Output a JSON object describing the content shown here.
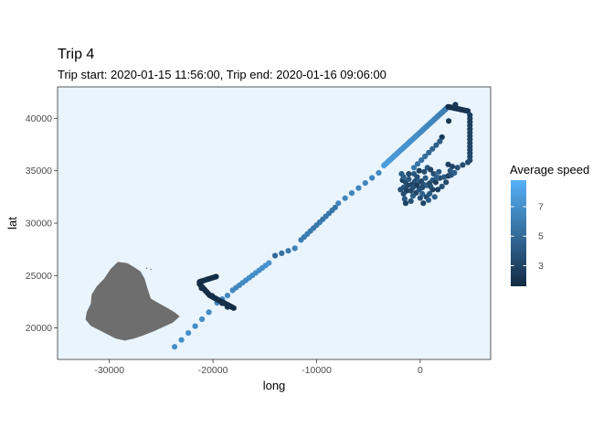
{
  "chart_data": {
    "type": "scatter",
    "title": "Trip 4",
    "subtitle": "Trip start: 2020-01-15 11:56:00, Trip end: 2020-01-16 09:06:00",
    "xlabel": "long",
    "ylabel": "lat",
    "xlim": [
      -35000,
      6800
    ],
    "ylim": [
      17000,
      43000
    ],
    "x_ticks": [
      -30000,
      -20000,
      -10000,
      0
    ],
    "x_tick_labels": [
      "-30000",
      "-20000",
      "-10000",
      "0"
    ],
    "y_ticks": [
      20000,
      25000,
      30000,
      35000,
      40000
    ],
    "y_tick_labels": [
      "20000",
      "25000",
      "30000",
      "35000",
      "40000"
    ],
    "grid": false,
    "panel_background": "#eaf4fd",
    "panel_border": "#333333",
    "land_color": "#6e6e6e",
    "color_scale": {
      "title": "Average speed",
      "low_color": "#132b43",
      "high_color": "#56b1f7",
      "range": [
        1.6,
        8.8
      ],
      "breaks": [
        3,
        5,
        7
      ],
      "break_labels": [
        "3",
        "5",
        "7"
      ]
    },
    "legend_position": "right",
    "island_outline": [
      [
        -29200,
        26300
      ],
      [
        -28300,
        26200
      ],
      [
        -27600,
        25800
      ],
      [
        -27000,
        25400
      ],
      [
        -26600,
        24700
      ],
      [
        -26300,
        23700
      ],
      [
        -26000,
        22800
      ],
      [
        -25300,
        22400
      ],
      [
        -24400,
        21900
      ],
      [
        -23700,
        21500
      ],
      [
        -23200,
        21100
      ],
      [
        -23900,
        20500
      ],
      [
        -24800,
        20100
      ],
      [
        -25700,
        19700
      ],
      [
        -26700,
        19300
      ],
      [
        -27600,
        19000
      ],
      [
        -28500,
        18800
      ],
      [
        -29400,
        19000
      ],
      [
        -30200,
        19400
      ],
      [
        -31000,
        19800
      ],
      [
        -31800,
        20200
      ],
      [
        -32300,
        20800
      ],
      [
        -32200,
        21500
      ],
      [
        -31800,
        22300
      ],
      [
        -31700,
        23200
      ],
      [
        -31200,
        24000
      ],
      [
        -30500,
        24700
      ],
      [
        -29900,
        25600
      ]
    ],
    "speckles": [
      [
        -26400,
        25700
      ],
      [
        -26000,
        25600
      ]
    ],
    "segments": [
      {
        "from": [
          -23700,
          18200
        ],
        "to": [
          -20400,
          21500
        ],
        "n": 6,
        "speed": [
          7.0,
          6.8
        ]
      },
      {
        "from": [
          -19600,
          22400
        ],
        "to": [
          -18600,
          23100
        ],
        "n": 3,
        "speed": [
          6.4,
          6.6
        ]
      },
      {
        "from": [
          -18100,
          23600
        ],
        "to": [
          -14600,
          26200
        ],
        "n": 12,
        "speed": [
          6.5,
          7.2
        ]
      },
      {
        "from": [
          -14000,
          26900
        ],
        "to": [
          -12100,
          27600
        ],
        "n": 4,
        "speed": [
          5.0,
          6.2
        ]
      },
      {
        "from": [
          -11500,
          28400
        ],
        "to": [
          -8200,
          31500
        ],
        "n": 12,
        "speed": [
          6.0,
          5.6
        ]
      },
      {
        "from": [
          -7900,
          31900
        ],
        "to": [
          -4000,
          34800
        ],
        "n": 7,
        "speed": [
          6.4,
          6.6
        ]
      },
      {
        "from": [
          -3500,
          35500
        ],
        "to": [
          2700,
          41100
        ],
        "n": 70,
        "speed": [
          7.8,
          6.0
        ]
      },
      {
        "from": [
          2700,
          41100
        ],
        "to": [
          4600,
          40700
        ],
        "n": 14,
        "speed": [
          1.9,
          2.2
        ]
      },
      {
        "from": [
          4800,
          40300
        ],
        "to": [
          4800,
          36000
        ],
        "n": 14,
        "speed": [
          2.6,
          3.2
        ]
      },
      {
        "from": [
          4600,
          35800
        ],
        "to": [
          3600,
          35300
        ],
        "n": 3,
        "speed": [
          3.4,
          3.6
        ]
      },
      {
        "from": [
          3400,
          41300
        ],
        "to": [
          2100,
          38200
        ],
        "n": 3,
        "speed": [
          2.2,
          2.4
        ]
      },
      {
        "from": [
          1900,
          37800
        ],
        "to": [
          -600,
          35300
        ],
        "n": 8,
        "speed": [
          4.2,
          5.8
        ]
      },
      {
        "from": [
          -18000,
          21900
        ],
        "to": [
          -20300,
          23100
        ],
        "n": 20,
        "speed": [
          1.7,
          1.8
        ]
      },
      {
        "from": [
          -20400,
          23200
        ],
        "to": [
          -21300,
          24200
        ],
        "n": 8,
        "speed": [
          1.7,
          1.7
        ]
      },
      {
        "from": [
          -21300,
          24400
        ],
        "to": [
          -19700,
          24900
        ],
        "n": 10,
        "speed": [
          1.7,
          1.7
        ]
      },
      {
        "from": [
          -21100,
          23800
        ],
        "to": [
          -18600,
          22000
        ],
        "n": 6,
        "speed": [
          1.8,
          1.9
        ]
      }
    ],
    "cluster": {
      "points": [
        [
          -1700,
          34100
        ],
        [
          -1400,
          33900
        ],
        [
          -1100,
          34200
        ],
        [
          -800,
          33700
        ],
        [
          -500,
          34000
        ],
        [
          -200,
          33900
        ],
        [
          100,
          34000
        ],
        [
          300,
          33700
        ],
        [
          600,
          33600
        ],
        [
          900,
          33800
        ],
        [
          1200,
          34100
        ],
        [
          1500,
          33900
        ],
        [
          1900,
          34300
        ],
        [
          2300,
          34400
        ],
        [
          2700,
          34500
        ],
        [
          3000,
          34600
        ],
        [
          3300,
          34800
        ],
        [
          3100,
          35400
        ],
        [
          -1600,
          33400
        ],
        [
          -1300,
          33100
        ],
        [
          -1600,
          32800
        ],
        [
          -1500,
          32300
        ],
        [
          -1400,
          31900
        ],
        [
          -900,
          32100
        ],
        [
          -700,
          32600
        ],
        [
          -400,
          32900
        ],
        [
          -100,
          33200
        ],
        [
          200,
          32800
        ],
        [
          600,
          32500
        ],
        [
          900,
          32800
        ],
        [
          1200,
          33200
        ],
        [
          1000,
          33500
        ],
        [
          800,
          32200
        ],
        [
          300,
          31900
        ],
        [
          -1900,
          33200
        ],
        [
          -1600,
          34400
        ],
        [
          -1100,
          34700
        ],
        [
          -600,
          34700
        ],
        [
          -100,
          35000
        ],
        [
          400,
          34900
        ],
        [
          700,
          35300
        ],
        [
          1000,
          35100
        ],
        [
          1300,
          34700
        ],
        [
          1600,
          34400
        ],
        [
          -1200,
          33600
        ],
        [
          -700,
          33400
        ],
        [
          -300,
          33600
        ],
        [
          200,
          33400
        ],
        [
          500,
          34300
        ],
        [
          1700,
          33200
        ],
        [
          2100,
          33500
        ],
        [
          -1800,
          34700
        ],
        [
          -900,
          33100
        ],
        [
          0,
          32400
        ],
        [
          1400,
          32500
        ],
        [
          2500,
          33900
        ],
        [
          2900,
          35000
        ],
        [
          2700,
          35600
        ],
        [
          -300,
          34400
        ],
        [
          1800,
          34900
        ]
      ],
      "speed": [
        2.6,
        4.6
      ]
    }
  }
}
